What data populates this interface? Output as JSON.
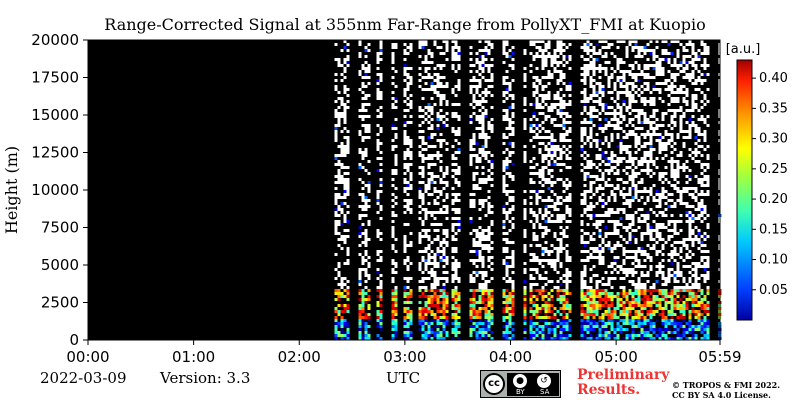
{
  "chart_data": {
    "type": "heatmap",
    "title": "Range-Corrected Signal at 355nm Far-Range from PollyXT_FMI at Kuopio",
    "ylabel": "Height (m)",
    "xlabel": "UTC",
    "ylim": [
      0,
      20000
    ],
    "x_ticks": [
      "00:00",
      "01:00",
      "02:00",
      "03:00",
      "04:00",
      "05:00",
      "05:59"
    ],
    "y_ticks": [
      0,
      2500,
      5000,
      7500,
      10000,
      12500,
      15000,
      17500,
      20000
    ],
    "colorbar": {
      "label": "[a.u.]",
      "range": [
        0.0,
        0.43
      ],
      "ticks": [
        "0.05",
        "0.10",
        "0.15",
        "0.20",
        "0.25",
        "0.30",
        "0.35",
        "0.40"
      ],
      "colormap": "jet"
    },
    "data_start_time": "02:20",
    "no_data_color": "#000000",
    "signal_summary": [
      {
        "height_range_m": [
          0,
          500
        ],
        "level": 0.1
      },
      {
        "height_range_m": [
          500,
          1500
        ],
        "level": 0.1
      },
      {
        "height_range_m": [
          1500,
          3500
        ],
        "level": 0.3
      },
      {
        "height_range_m": [
          3500,
          20000
        ],
        "level": 0.02
      }
    ]
  },
  "footer": {
    "date": "2022-03-09",
    "version": "Version: 3.3",
    "xlabel": "UTC",
    "license_badge": {
      "cc": "cc",
      "by": "BY",
      "sa": "SA"
    },
    "preliminary": "Preliminary Results.",
    "copyright_line1": "© TROPOS & FMI 2022.",
    "copyright_line2": "CC BY SA 4.0 License."
  }
}
